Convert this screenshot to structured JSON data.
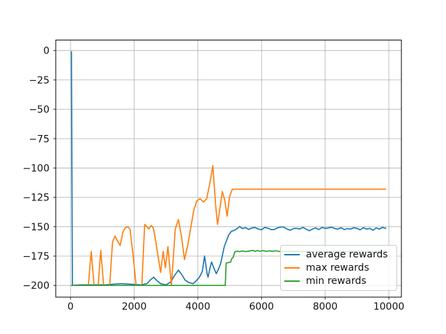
{
  "window": {
    "title": "reward training curves"
  },
  "colors": {
    "background": "#ffffff",
    "grid": "#b0b0b0",
    "spine": "#000000",
    "tick_label": "#111111",
    "legend_border": "#cccccc",
    "legend_bg": "rgba(255,255,255,0.8)"
  },
  "chart_data": {
    "type": "line",
    "title": "",
    "xlabel": "",
    "ylabel": "",
    "grid": true,
    "xlim": [
      -463.5,
      10393.5
    ],
    "ylim": [
      -209.95,
      8.95
    ],
    "xticks": [
      0,
      2000,
      4000,
      6000,
      8000,
      10000
    ],
    "xtick_labels": [
      "0",
      "2000",
      "4000",
      "6000",
      "8000",
      "10000"
    ],
    "yticks": [
      0,
      -25,
      -50,
      -75,
      -100,
      -125,
      -150,
      -175,
      -200
    ],
    "ytick_labels": [
      "0",
      "−25",
      "−50",
      "−75",
      "−100",
      "−125",
      "−150",
      "−175",
      "−200"
    ],
    "legend": {
      "location": "lower right"
    },
    "series": [
      {
        "name": "average rewards",
        "color": "#1f77b4",
        "points": [
          [
            30,
            -1
          ],
          [
            60,
            -200
          ],
          [
            300,
            -199.5
          ],
          [
            700,
            -199.5
          ],
          [
            1100,
            -199.5
          ],
          [
            1400,
            -198.8
          ],
          [
            1600,
            -198.5
          ],
          [
            1900,
            -199
          ],
          [
            2200,
            -199.5
          ],
          [
            2400,
            -198.5
          ],
          [
            2520,
            -195
          ],
          [
            2610,
            -193
          ],
          [
            2700,
            -195.5
          ],
          [
            2830,
            -198.5
          ],
          [
            3000,
            -199.5
          ],
          [
            3150,
            -197
          ],
          [
            3280,
            -191
          ],
          [
            3390,
            -187
          ],
          [
            3500,
            -191
          ],
          [
            3600,
            -195.5
          ],
          [
            3720,
            -197.5
          ],
          [
            3850,
            -198.5
          ],
          [
            3950,
            -196
          ],
          [
            4050,
            -193
          ],
          [
            4140,
            -188
          ],
          [
            4210,
            -175
          ],
          [
            4290,
            -190
          ],
          [
            4320,
            -193
          ],
          [
            4400,
            -183
          ],
          [
            4430,
            -180
          ],
          [
            4500,
            -185
          ],
          [
            4580,
            -190
          ],
          [
            4650,
            -186
          ],
          [
            4720,
            -181
          ],
          [
            4830,
            -167
          ],
          [
            4900,
            -162
          ],
          [
            4970,
            -157
          ],
          [
            5050,
            -154
          ],
          [
            5150,
            -153
          ],
          [
            5240,
            -151.5
          ],
          [
            5310,
            -149.8
          ],
          [
            5400,
            -151.5
          ],
          [
            5500,
            -150.8
          ],
          [
            5600,
            -152.3
          ],
          [
            5700,
            -151
          ],
          [
            5800,
            -150.7
          ],
          [
            5900,
            -152
          ],
          [
            6000,
            -152.6
          ],
          [
            6100,
            -150.6
          ],
          [
            6200,
            -151.2
          ],
          [
            6300,
            -152.4
          ],
          [
            6400,
            -152.4
          ],
          [
            6500,
            -151
          ],
          [
            6600,
            -150.2
          ],
          [
            6700,
            -150.4
          ],
          [
            6800,
            -152
          ],
          [
            6900,
            -153
          ],
          [
            7000,
            -151.6
          ],
          [
            7100,
            -151.4
          ],
          [
            7200,
            -152
          ],
          [
            7300,
            -150.6
          ],
          [
            7400,
            -152
          ],
          [
            7500,
            -153.4
          ],
          [
            7600,
            -152
          ],
          [
            7700,
            -151
          ],
          [
            7800,
            -152.4
          ],
          [
            7900,
            -150.6
          ],
          [
            8000,
            -151.4
          ],
          [
            8100,
            -151
          ],
          [
            8200,
            -150.4
          ],
          [
            8300,
            -151.6
          ],
          [
            8400,
            -152
          ],
          [
            8500,
            -150.8
          ],
          [
            8600,
            -152.4
          ],
          [
            8700,
            -151.6
          ],
          [
            8800,
            -152
          ],
          [
            8900,
            -150.8
          ],
          [
            9000,
            -151.4
          ],
          [
            9100,
            -152.6
          ],
          [
            9200,
            -150.8
          ],
          [
            9300,
            -152
          ],
          [
            9400,
            -151.4
          ],
          [
            9500,
            -153
          ],
          [
            9600,
            -151
          ],
          [
            9700,
            -152
          ],
          [
            9800,
            -150.6
          ],
          [
            9900,
            -151.4
          ]
        ]
      },
      {
        "name": "max rewards",
        "color": "#ff7f0e",
        "points": [
          [
            30,
            -200
          ],
          [
            560,
            -200
          ],
          [
            650,
            -171
          ],
          [
            740,
            -200
          ],
          [
            870,
            -200
          ],
          [
            950,
            -170
          ],
          [
            1040,
            -200
          ],
          [
            1230,
            -200
          ],
          [
            1320,
            -163
          ],
          [
            1400,
            -158
          ],
          [
            1470,
            -162
          ],
          [
            1560,
            -166
          ],
          [
            1650,
            -154
          ],
          [
            1720,
            -151
          ],
          [
            1800,
            -150
          ],
          [
            1870,
            -152
          ],
          [
            1980,
            -178
          ],
          [
            2060,
            -200
          ],
          [
            2240,
            -200
          ],
          [
            2330,
            -148
          ],
          [
            2400,
            -150
          ],
          [
            2460,
            -152
          ],
          [
            2530,
            -149
          ],
          [
            2600,
            -151
          ],
          [
            2680,
            -163
          ],
          [
            2760,
            -177
          ],
          [
            2830,
            -189
          ],
          [
            2910,
            -171
          ],
          [
            2980,
            -185
          ],
          [
            3060,
            -167
          ],
          [
            3170,
            -200
          ],
          [
            3290,
            -152
          ],
          [
            3390,
            -144
          ],
          [
            3490,
            -159
          ],
          [
            3580,
            -178
          ],
          [
            3680,
            -166
          ],
          [
            3770,
            -152
          ],
          [
            3870,
            -136
          ],
          [
            3970,
            -128
          ],
          [
            4070,
            -126
          ],
          [
            4180,
            -129
          ],
          [
            4280,
            -126
          ],
          [
            4390,
            -111
          ],
          [
            4470,
            -98
          ],
          [
            4560,
            -132
          ],
          [
            4620,
            -148
          ],
          [
            4700,
            -133
          ],
          [
            4770,
            -120
          ],
          [
            4850,
            -128
          ],
          [
            4920,
            -141
          ],
          [
            5000,
            -124
          ],
          [
            5080,
            -118
          ],
          [
            5200,
            -118
          ],
          [
            9900,
            -118
          ]
        ]
      },
      {
        "name": "min rewards",
        "color": "#2ca02c",
        "points": [
          [
            30,
            -200
          ],
          [
            4860,
            -200
          ],
          [
            4890,
            -181
          ],
          [
            4960,
            -180.5
          ],
          [
            5030,
            -180
          ],
          [
            5060,
            -177.5
          ],
          [
            5110,
            -176
          ],
          [
            5160,
            -171.5
          ],
          [
            5240,
            -170.8
          ],
          [
            5320,
            -171.2
          ],
          [
            5400,
            -170.6
          ],
          [
            5500,
            -171.2
          ],
          [
            5600,
            -170.8
          ],
          [
            5740,
            -170.2
          ],
          [
            5800,
            -171
          ],
          [
            5870,
            -170.2
          ],
          [
            5950,
            -171
          ],
          [
            6050,
            -170.3
          ],
          [
            6150,
            -171
          ],
          [
            6250,
            -170.5
          ],
          [
            6350,
            -170.9
          ],
          [
            6450,
            -170.4
          ],
          [
            6550,
            -171
          ],
          [
            6700,
            -171
          ],
          [
            9900,
            -171
          ]
        ]
      }
    ]
  }
}
